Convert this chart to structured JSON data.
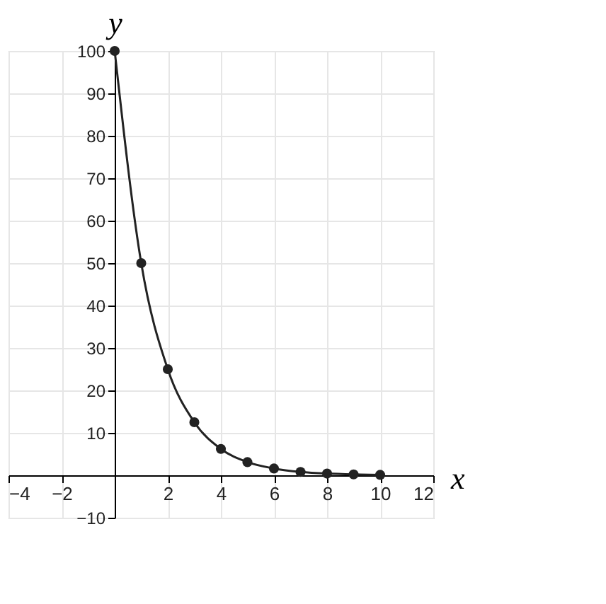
{
  "chart_data": {
    "type": "line",
    "xlabel": "x",
    "ylabel": "y",
    "x": [
      0,
      1,
      2,
      3,
      4,
      5,
      6,
      7,
      8,
      9,
      10
    ],
    "series": [
      {
        "color": "#222222",
        "values": [
          100,
          50,
          25,
          12.5,
          6.2,
          3.1,
          1.6,
          0.8,
          0.4,
          0.2,
          0.1
        ]
      }
    ],
    "xlim": [
      -4,
      12
    ],
    "xticks": [
      -4,
      -2,
      2,
      4,
      6,
      8,
      10,
      12
    ],
    "ylim": [
      -10,
      100
    ],
    "yticks": [
      -10,
      10,
      20,
      30,
      40,
      50,
      60,
      70,
      80,
      90,
      100
    ],
    "grid": true,
    "marker": "circle",
    "line_style": "solid"
  }
}
